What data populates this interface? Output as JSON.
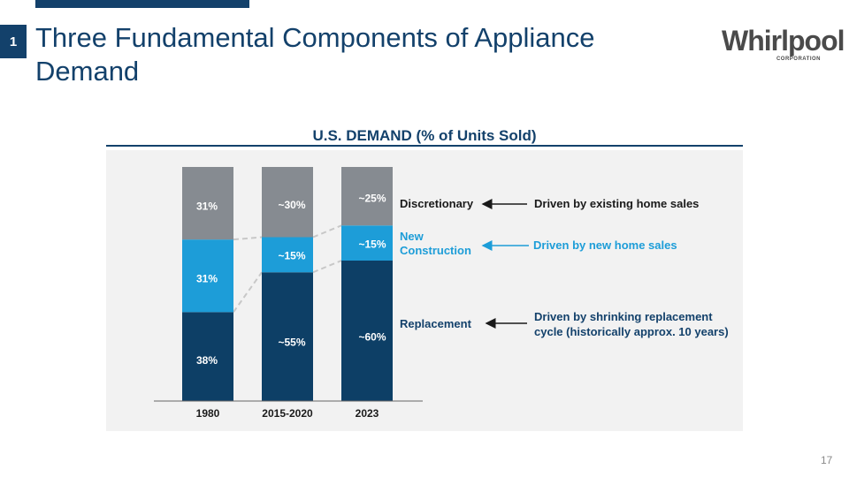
{
  "slide": {
    "section_number": "1",
    "title": "Three Fundamental Components of Appliance Demand",
    "page_number": "17",
    "logo": {
      "word": "Whirlpool",
      "sub": "CORPORATION"
    }
  },
  "colors": {
    "navy": "#13416b",
    "replacement": "#0d3f66",
    "new_construction": "#1d9dd8",
    "discretionary": "#868b91",
    "panel": "#f2f2f2"
  },
  "chart_data": {
    "type": "bar",
    "stacked": true,
    "title": "U.S. DEMAND (% of Units Sold)",
    "categories": [
      "1980",
      "2015-2020",
      "2023"
    ],
    "series": [
      {
        "name": "Replacement",
        "values": [
          38,
          55,
          60
        ],
        "labels": [
          "38%",
          "~55%",
          "~60%"
        ]
      },
      {
        "name": "New Construction",
        "values": [
          31,
          15,
          15
        ],
        "labels": [
          "31%",
          "~15%",
          "~15%"
        ]
      },
      {
        "name": "Discretionary",
        "values": [
          31,
          30,
          25
        ],
        "labels": [
          "31%",
          "~30%",
          "~25%"
        ]
      }
    ],
    "ylim": [
      0,
      100
    ],
    "annotations": [
      {
        "series": "Discretionary",
        "label": "Discretionary",
        "driver": "Driven by existing home sales"
      },
      {
        "series": "New Construction",
        "label": "New Construction",
        "driver": "Driven by new home sales"
      },
      {
        "series": "Replacement",
        "label": "Replacement",
        "driver": "Driven by shrinking replacement cycle (historically approx. 10 years)"
      }
    ]
  }
}
